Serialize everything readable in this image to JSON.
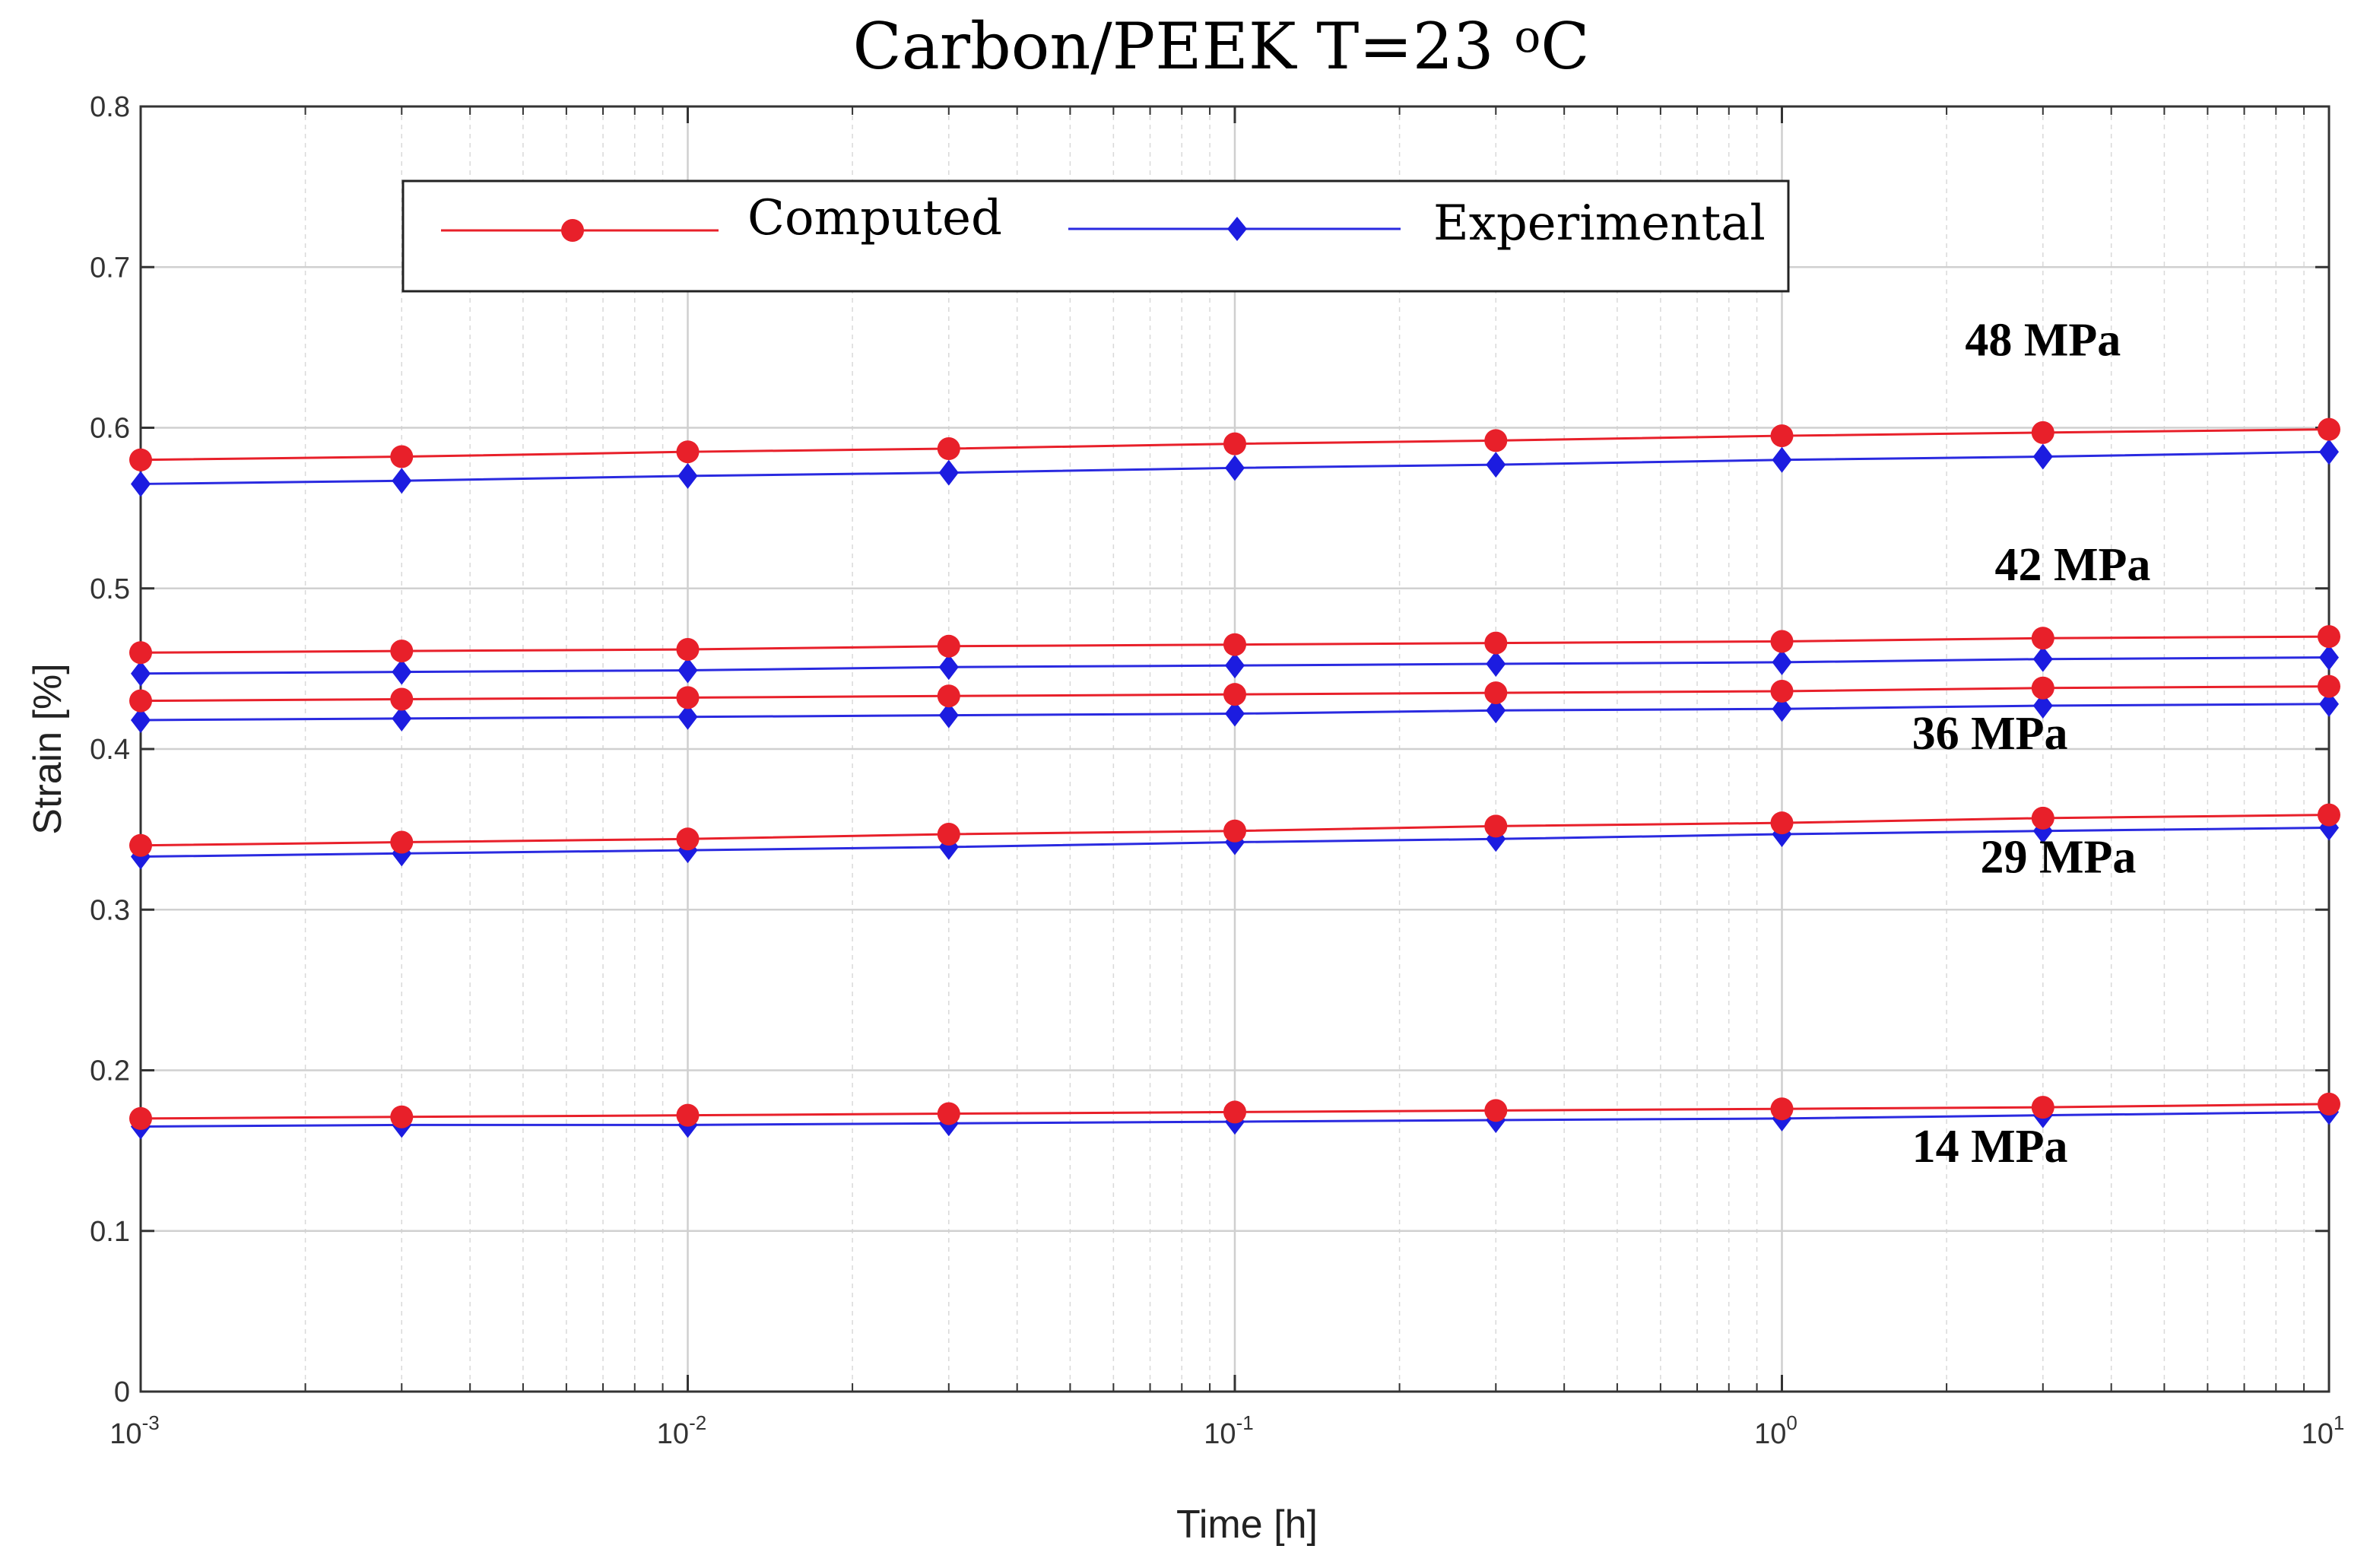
{
  "chart_data": {
    "type": "line",
    "title": "Carbon/PEEK  T=23 oC",
    "title_main": "Carbon/PEEK  T=23 ",
    "title_super": "o",
    "title_unit": "C",
    "xlabel": "Time [h]",
    "ylabel": "Strain [%]",
    "xscale": "log",
    "xlim": [
      0.001,
      10
    ],
    "ylim": [
      0,
      0.8
    ],
    "grid": true,
    "legend_position": "top-left",
    "x_ticks": [
      {
        "base": "10",
        "exp": "-3"
      },
      {
        "base": "10",
        "exp": "-2"
      },
      {
        "base": "10",
        "exp": "-1"
      },
      {
        "base": "10",
        "exp": "0"
      },
      {
        "base": "10",
        "exp": "1"
      }
    ],
    "y_ticks": [
      "0",
      "0.1",
      "0.2",
      "0.3",
      "0.4",
      "0.5",
      "0.6",
      "0.7",
      "0.8"
    ],
    "y_tick_values": [
      0,
      0.1,
      0.2,
      0.3,
      0.4,
      0.5,
      0.6,
      0.7,
      0.8
    ],
    "x": [
      0.001,
      0.003,
      0.01,
      0.03,
      0.1,
      0.3,
      1,
      3,
      10
    ],
    "legend": [
      {
        "name": "Computed",
        "color": "#e8202a",
        "marker": "circle"
      },
      {
        "name": "Experimental",
        "color": "#2a2ae0",
        "marker": "diamond"
      }
    ],
    "groups": [
      {
        "label": "48 MPa",
        "computed": [
          0.58,
          0.582,
          0.585,
          0.587,
          0.59,
          0.592,
          0.595,
          0.597,
          0.599
        ],
        "experimental": [
          0.565,
          0.567,
          0.57,
          0.572,
          0.575,
          0.577,
          0.58,
          0.582,
          0.585
        ]
      },
      {
        "label": "42 MPa",
        "computed": [
          0.46,
          0.461,
          0.462,
          0.464,
          0.465,
          0.466,
          0.467,
          0.469,
          0.47
        ],
        "experimental": [
          0.447,
          0.448,
          0.449,
          0.451,
          0.452,
          0.453,
          0.454,
          0.456,
          0.457
        ]
      },
      {
        "label": "36 MPa",
        "computed": [
          0.43,
          0.431,
          0.432,
          0.433,
          0.434,
          0.435,
          0.436,
          0.438,
          0.439
        ],
        "experimental": [
          0.418,
          0.419,
          0.42,
          0.421,
          0.422,
          0.424,
          0.425,
          0.427,
          0.428
        ]
      },
      {
        "label": "29 MPa",
        "computed": [
          0.34,
          0.342,
          0.344,
          0.347,
          0.349,
          0.352,
          0.354,
          0.357,
          0.359
        ],
        "experimental": [
          0.333,
          0.335,
          0.337,
          0.339,
          0.342,
          0.344,
          0.347,
          0.349,
          0.351
        ]
      },
      {
        "label": "14 MPa",
        "computed": [
          0.17,
          0.171,
          0.172,
          0.173,
          0.174,
          0.175,
          0.176,
          0.177,
          0.179
        ],
        "experimental": [
          0.165,
          0.166,
          0.166,
          0.167,
          0.168,
          0.169,
          0.17,
          0.172,
          0.174
        ]
      }
    ],
    "annotations": [
      {
        "text": "48 MPa",
        "x": 3,
        "y": 0.645
      },
      {
        "text": "42 MPa",
        "x": 3.4,
        "y": 0.505
      },
      {
        "text": "36 MPa",
        "x": 2.4,
        "y": 0.4
      },
      {
        "text": "29 MPa",
        "x": 3.2,
        "y": 0.323
      },
      {
        "text": "14 MPa",
        "x": 2.4,
        "y": 0.143
      }
    ]
  }
}
